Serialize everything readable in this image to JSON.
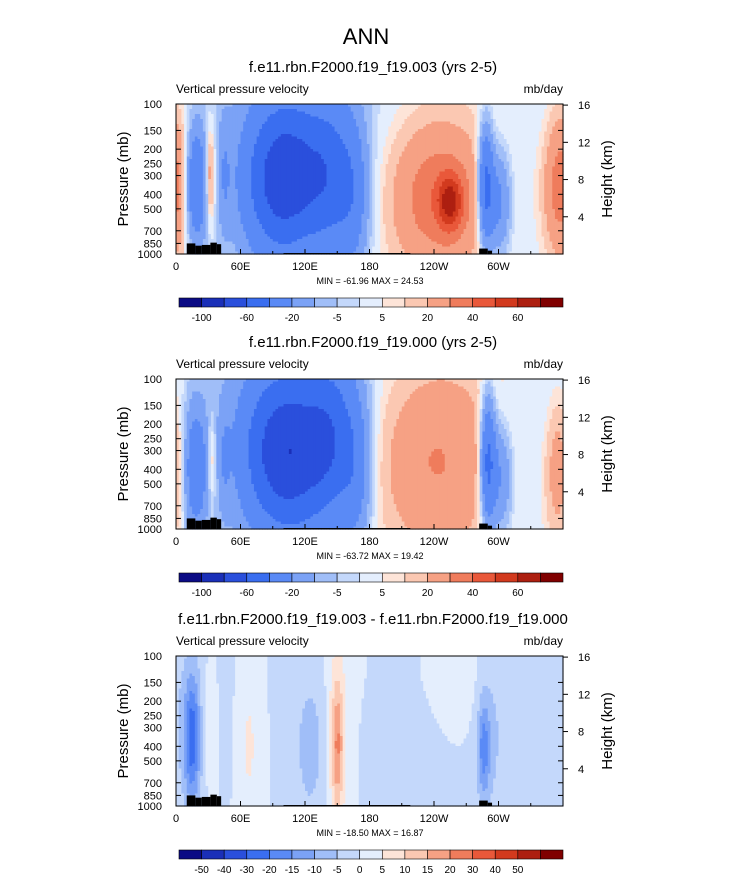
{
  "figure_title": "ANN",
  "colors": {
    "topo_fill": "#000000",
    "frame": "#000000",
    "background": "#ffffff"
  },
  "chart_data": [
    {
      "type": "heatmap",
      "title": "f.e11.rbn.F2000.f19_f19.003 (yrs 2-5)",
      "left_string": "Vertical pressure velocity",
      "right_string": "mb/day",
      "ylabel": "Pressure (mb)",
      "y2label": "Height (km)",
      "x_ticks": [
        "0",
        "60E",
        "120E",
        "180",
        "120W",
        "60W"
      ],
      "x_tick_values": [
        0,
        60,
        120,
        180,
        240,
        300
      ],
      "xlim": [
        0,
        360
      ],
      "y_ticks": [
        "100",
        "150",
        "200",
        "250",
        "300",
        "400",
        "500",
        "700",
        "850",
        "1000"
      ],
      "y_tick_values": [
        100,
        150,
        200,
        250,
        300,
        400,
        500,
        700,
        850,
        1000
      ],
      "ylim": [
        1000,
        100
      ],
      "y_scale": "log",
      "y2_ticks": [
        "16",
        "12",
        "8",
        "4"
      ],
      "minmax_label": "MIN = -61.96  MAX = 24.53",
      "min": -61.96,
      "max": 24.53,
      "colorbar_labels": [
        "-100",
        "-60",
        "-20",
        "-5",
        "5",
        "20",
        "40",
        "60"
      ],
      "colorbar_levels": [
        -120,
        -100,
        -80,
        -60,
        -40,
        -20,
        -10,
        -5,
        -2,
        2,
        5,
        10,
        20,
        30,
        40,
        50,
        60
      ],
      "colorbar_colors": [
        "#0b0b85",
        "#1a2fb8",
        "#2a4fdc",
        "#3a6ef0",
        "#5a8af6",
        "#7ba2f6",
        "#a0bef8",
        "#c4d8fb",
        "#e4eefd",
        "#fde4d8",
        "#fbc8b2",
        "#f6a184",
        "#ef7c5c",
        "#e9583a",
        "#d23a1e",
        "#ad1f10",
        "#800000"
      ],
      "features": [
        {
          "lon": 18,
          "p": 350,
          "dlon": 7,
          "dlogp": 0.55,
          "v": -40
        },
        {
          "lon": 32,
          "p": 300,
          "dlon": 3,
          "dlogp": 0.45,
          "v": 22
        },
        {
          "lon": 45,
          "p": 300,
          "dlon": 4,
          "dlogp": 0.55,
          "v": -12
        },
        {
          "lon": 85,
          "p": 320,
          "dlon": 20,
          "dlogp": 0.75,
          "v": -40
        },
        {
          "lon": 108,
          "p": 300,
          "dlon": 18,
          "dlogp": 0.75,
          "v": -42
        },
        {
          "lon": 142,
          "p": 300,
          "dlon": 18,
          "dlogp": 0.75,
          "v": -45
        },
        {
          "lon": 165,
          "p": 450,
          "dlon": 10,
          "dlogp": 0.7,
          "v": -18
        },
        {
          "lon": 120,
          "p": 200,
          "dlon": 90,
          "dlogp": 1.4,
          "v": -7
        },
        {
          "lon": 243,
          "p": 420,
          "dlon": 32,
          "dlogp": 0.7,
          "v": 26
        },
        {
          "lon": 255,
          "p": 450,
          "dlon": 8,
          "dlogp": 0.25,
          "v": 34
        },
        {
          "lon": 240,
          "p": 300,
          "dlon": 60,
          "dlogp": 1.4,
          "v": 4
        },
        {
          "lon": 288,
          "p": 350,
          "dlon": 5,
          "dlogp": 0.55,
          "v": -48
        },
        {
          "lon": 300,
          "p": 450,
          "dlon": 8,
          "dlogp": 0.5,
          "v": -28
        },
        {
          "lon": 357,
          "p": 350,
          "dlon": 12,
          "dlogp": 0.7,
          "v": 30
        },
        {
          "lon": 345,
          "p": 300,
          "dlon": 10,
          "dlogp": 0.9,
          "v": -4
        }
      ]
    },
    {
      "type": "heatmap",
      "title": "f.e11.rbn.F2000.f19_f19.000 (yrs 2-5)",
      "left_string": "Vertical pressure velocity",
      "right_string": "mb/day",
      "ylabel": "Pressure (mb)",
      "y2label": "Height (km)",
      "x_ticks": [
        "0",
        "60E",
        "120E",
        "180",
        "120W",
        "60W"
      ],
      "x_tick_values": [
        0,
        60,
        120,
        180,
        240,
        300
      ],
      "xlim": [
        0,
        360
      ],
      "y_ticks": [
        "100",
        "150",
        "200",
        "250",
        "300",
        "400",
        "500",
        "700",
        "850",
        "1000"
      ],
      "y_tick_values": [
        100,
        150,
        200,
        250,
        300,
        400,
        500,
        700,
        850,
        1000
      ],
      "ylim": [
        1000,
        100
      ],
      "y_scale": "log",
      "y2_ticks": [
        "16",
        "12",
        "8",
        "4"
      ],
      "minmax_label": "MIN = -63.72  MAX = 19.42",
      "min": -63.72,
      "max": 19.42,
      "colorbar_labels": [
        "-100",
        "-60",
        "-20",
        "-5",
        "5",
        "20",
        "40",
        "60"
      ],
      "colorbar_levels": [
        -120,
        -100,
        -80,
        -60,
        -40,
        -20,
        -10,
        -5,
        -2,
        2,
        5,
        10,
        20,
        30,
        40,
        50,
        60
      ],
      "colorbar_colors": [
        "#0b0b85",
        "#1a2fb8",
        "#2a4fdc",
        "#3a6ef0",
        "#5a8af6",
        "#7ba2f6",
        "#a0bef8",
        "#c4d8fb",
        "#e4eefd",
        "#fde4d8",
        "#fbc8b2",
        "#f6a184",
        "#ef7c5c",
        "#e9583a",
        "#d23a1e",
        "#ad1f10",
        "#800000"
      ],
      "features": [
        {
          "lon": 18,
          "p": 400,
          "dlon": 8,
          "dlogp": 0.6,
          "v": -32
        },
        {
          "lon": 33,
          "p": 350,
          "dlon": 3,
          "dlogp": 0.4,
          "v": 14
        },
        {
          "lon": 45,
          "p": 350,
          "dlon": 4,
          "dlogp": 0.55,
          "v": -10
        },
        {
          "lon": 85,
          "p": 300,
          "dlon": 22,
          "dlogp": 0.8,
          "v": -42
        },
        {
          "lon": 112,
          "p": 320,
          "dlon": 20,
          "dlogp": 0.8,
          "v": -45
        },
        {
          "lon": 145,
          "p": 250,
          "dlon": 18,
          "dlogp": 0.8,
          "v": -46
        },
        {
          "lon": 168,
          "p": 450,
          "dlon": 10,
          "dlogp": 0.7,
          "v": -18
        },
        {
          "lon": 120,
          "p": 200,
          "dlon": 90,
          "dlogp": 1.4,
          "v": -7
        },
        {
          "lon": 240,
          "p": 350,
          "dlon": 42,
          "dlogp": 0.9,
          "v": 19
        },
        {
          "lon": 240,
          "p": 300,
          "dlon": 60,
          "dlogp": 1.4,
          "v": 4
        },
        {
          "lon": 290,
          "p": 350,
          "dlon": 5,
          "dlogp": 0.6,
          "v": -48
        },
        {
          "lon": 302,
          "p": 450,
          "dlon": 8,
          "dlogp": 0.55,
          "v": -25
        },
        {
          "lon": 355,
          "p": 400,
          "dlon": 10,
          "dlogp": 0.7,
          "v": 18
        },
        {
          "lon": 343,
          "p": 300,
          "dlon": 10,
          "dlogp": 0.9,
          "v": -4
        }
      ]
    },
    {
      "type": "heatmap",
      "title": "f.e11.rbn.F2000.f19_f19.003 - f.e11.rbn.F2000.f19_f19.000",
      "left_string": "Vertical pressure velocity",
      "right_string": "mb/day",
      "ylabel": "Pressure (mb)",
      "y2label": "Height (km)",
      "x_ticks": [
        "0",
        "60E",
        "120E",
        "180",
        "120W",
        "60W"
      ],
      "x_tick_values": [
        0,
        60,
        120,
        180,
        240,
        300
      ],
      "xlim": [
        0,
        360
      ],
      "y_ticks": [
        "100",
        "150",
        "200",
        "250",
        "300",
        "400",
        "500",
        "700",
        "850",
        "1000"
      ],
      "y_tick_values": [
        100,
        150,
        200,
        250,
        300,
        400,
        500,
        700,
        850,
        1000
      ],
      "ylim": [
        1000,
        100
      ],
      "y_scale": "log",
      "y2_ticks": [
        "16",
        "12",
        "8",
        "4"
      ],
      "minmax_label": "MIN = -18.50  MAX = 16.87",
      "min": -18.5,
      "max": 16.87,
      "colorbar_labels": [
        "-50",
        "-40",
        "-30",
        "-20",
        "-15",
        "-10",
        "-5",
        "0",
        "5",
        "10",
        "15",
        "20",
        "30",
        "40",
        "50"
      ],
      "colorbar_levels": [
        -60,
        -50,
        -40,
        -30,
        -20,
        -15,
        -10,
        -5,
        0,
        5,
        10,
        15,
        20,
        30,
        40,
        50,
        60
      ],
      "colorbar_colors": [
        "#0b0b85",
        "#1a2fb8",
        "#2a4fdc",
        "#3a6ef0",
        "#5a8af6",
        "#7ba2f6",
        "#a0bef8",
        "#c4d8fb",
        "#e4eefd",
        "#fde4d8",
        "#fbc8b2",
        "#f6a184",
        "#ef7c5c",
        "#e9583a",
        "#d23a1e",
        "#ad1f10",
        "#800000"
      ],
      "features": [
        {
          "lon": 15,
          "p": 350,
          "dlon": 5,
          "dlogp": 0.55,
          "v": -17
        },
        {
          "lon": 15,
          "p": 400,
          "dlon": 9,
          "dlogp": 0.9,
          "v": -6
        },
        {
          "lon": 30,
          "p": 300,
          "dlon": 5,
          "dlogp": 0.6,
          "v": 5
        },
        {
          "lon": 68,
          "p": 400,
          "dlon": 6,
          "dlogp": 0.7,
          "v": 6
        },
        {
          "lon": 125,
          "p": 400,
          "dlon": 12,
          "dlogp": 0.8,
          "v": -7
        },
        {
          "lon": 150,
          "p": 400,
          "dlon": 4,
          "dlogp": 0.6,
          "v": 16
        },
        {
          "lon": 150,
          "p": 300,
          "dlon": 8,
          "dlogp": 1.2,
          "v": 6
        },
        {
          "lon": 215,
          "p": 350,
          "dlon": 20,
          "dlogp": 1.0,
          "v": -4
        },
        {
          "lon": 286,
          "p": 420,
          "dlon": 4,
          "dlogp": 0.45,
          "v": -14
        },
        {
          "lon": 292,
          "p": 350,
          "dlon": 8,
          "dlogp": 0.9,
          "v": -5
        },
        {
          "lon": 330,
          "p": 200,
          "dlon": 35,
          "dlogp": 0.8,
          "v": -4
        },
        {
          "lon": 255,
          "p": 150,
          "dlon": 40,
          "dlogp": 0.5,
          "v": 3
        }
      ]
    }
  ]
}
